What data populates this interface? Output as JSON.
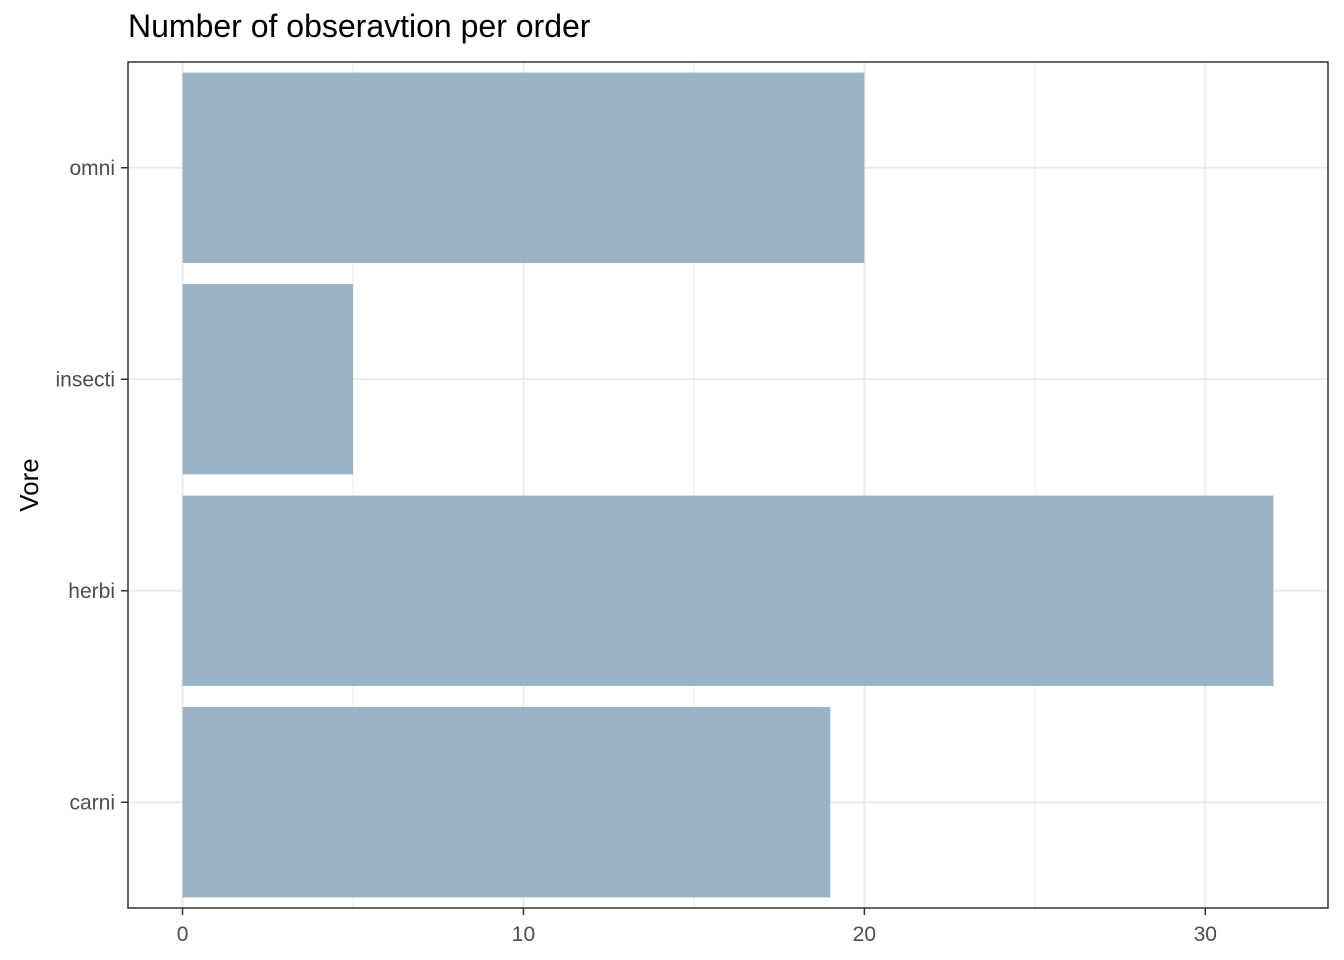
{
  "chart_data": {
    "type": "bar",
    "orientation": "horizontal",
    "title": "Number of obseravtion per order",
    "xlabel": "",
    "ylabel": "Vore",
    "categories": [
      "carni",
      "herbi",
      "insecti",
      "omni"
    ],
    "values": [
      19,
      32,
      5,
      20
    ],
    "xlim": [
      -1.6,
      33.6
    ],
    "xticks": [
      0,
      10,
      20,
      30
    ],
    "xtick_labels": [
      "0",
      "10",
      "20",
      "30"
    ],
    "grid": true,
    "legend": "none",
    "colors": {
      "bar": "#98b4c6",
      "grid": "#ebebeb",
      "panel_border": "#333333",
      "tick_text": "#4d4d4d"
    }
  }
}
